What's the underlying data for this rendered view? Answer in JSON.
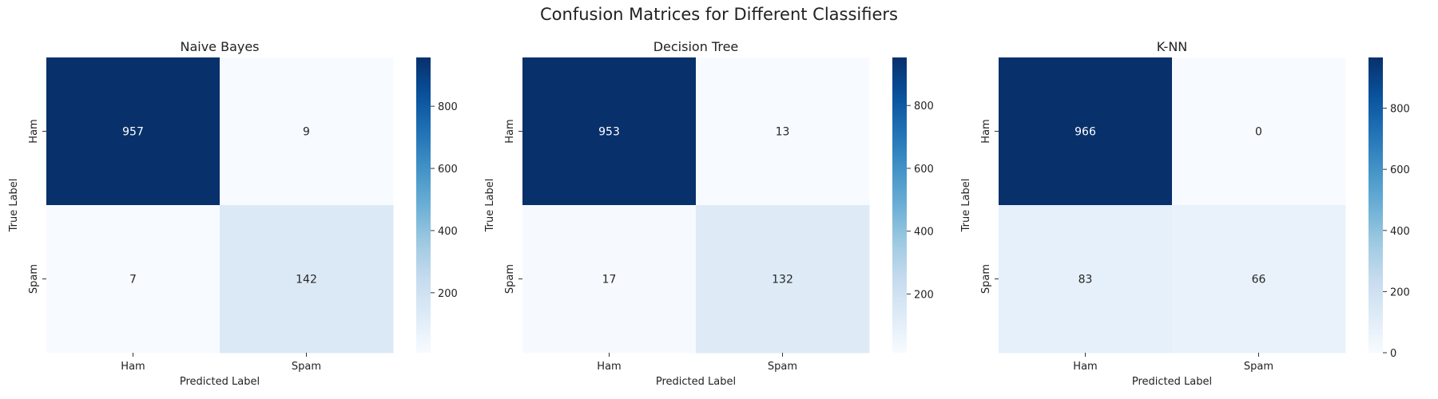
{
  "figure": {
    "title": "Confusion Matrices for Different Classifiers"
  },
  "colormap": {
    "name": "Blues",
    "low_color": "#f7fbff",
    "high_color": "#08306b"
  },
  "chart_data": [
    {
      "type": "heatmap",
      "title": "Naive Bayes",
      "xlabel": "Predicted Label",
      "ylabel": "True Label",
      "x_categories": [
        "Ham",
        "Spam"
      ],
      "y_categories": [
        "Ham",
        "Spam"
      ],
      "values": [
        [
          957,
          9
        ],
        [
          7,
          142
        ]
      ],
      "colorbar": {
        "ticks": [
          200,
          400,
          600,
          800
        ]
      }
    },
    {
      "type": "heatmap",
      "title": "Decision Tree",
      "xlabel": "Predicted Label",
      "ylabel": "True Label",
      "x_categories": [
        "Ham",
        "Spam"
      ],
      "y_categories": [
        "Ham",
        "Spam"
      ],
      "values": [
        [
          953,
          13
        ],
        [
          17,
          132
        ]
      ],
      "colorbar": {
        "ticks": [
          200,
          400,
          600,
          800
        ]
      }
    },
    {
      "type": "heatmap",
      "title": "K-NN",
      "xlabel": "Predicted Label",
      "ylabel": "True Label",
      "x_categories": [
        "Ham",
        "Spam"
      ],
      "y_categories": [
        "Ham",
        "Spam"
      ],
      "values": [
        [
          966,
          0
        ],
        [
          83,
          66
        ]
      ],
      "colorbar": {
        "ticks": [
          0,
          200,
          400,
          600,
          800
        ]
      }
    }
  ]
}
